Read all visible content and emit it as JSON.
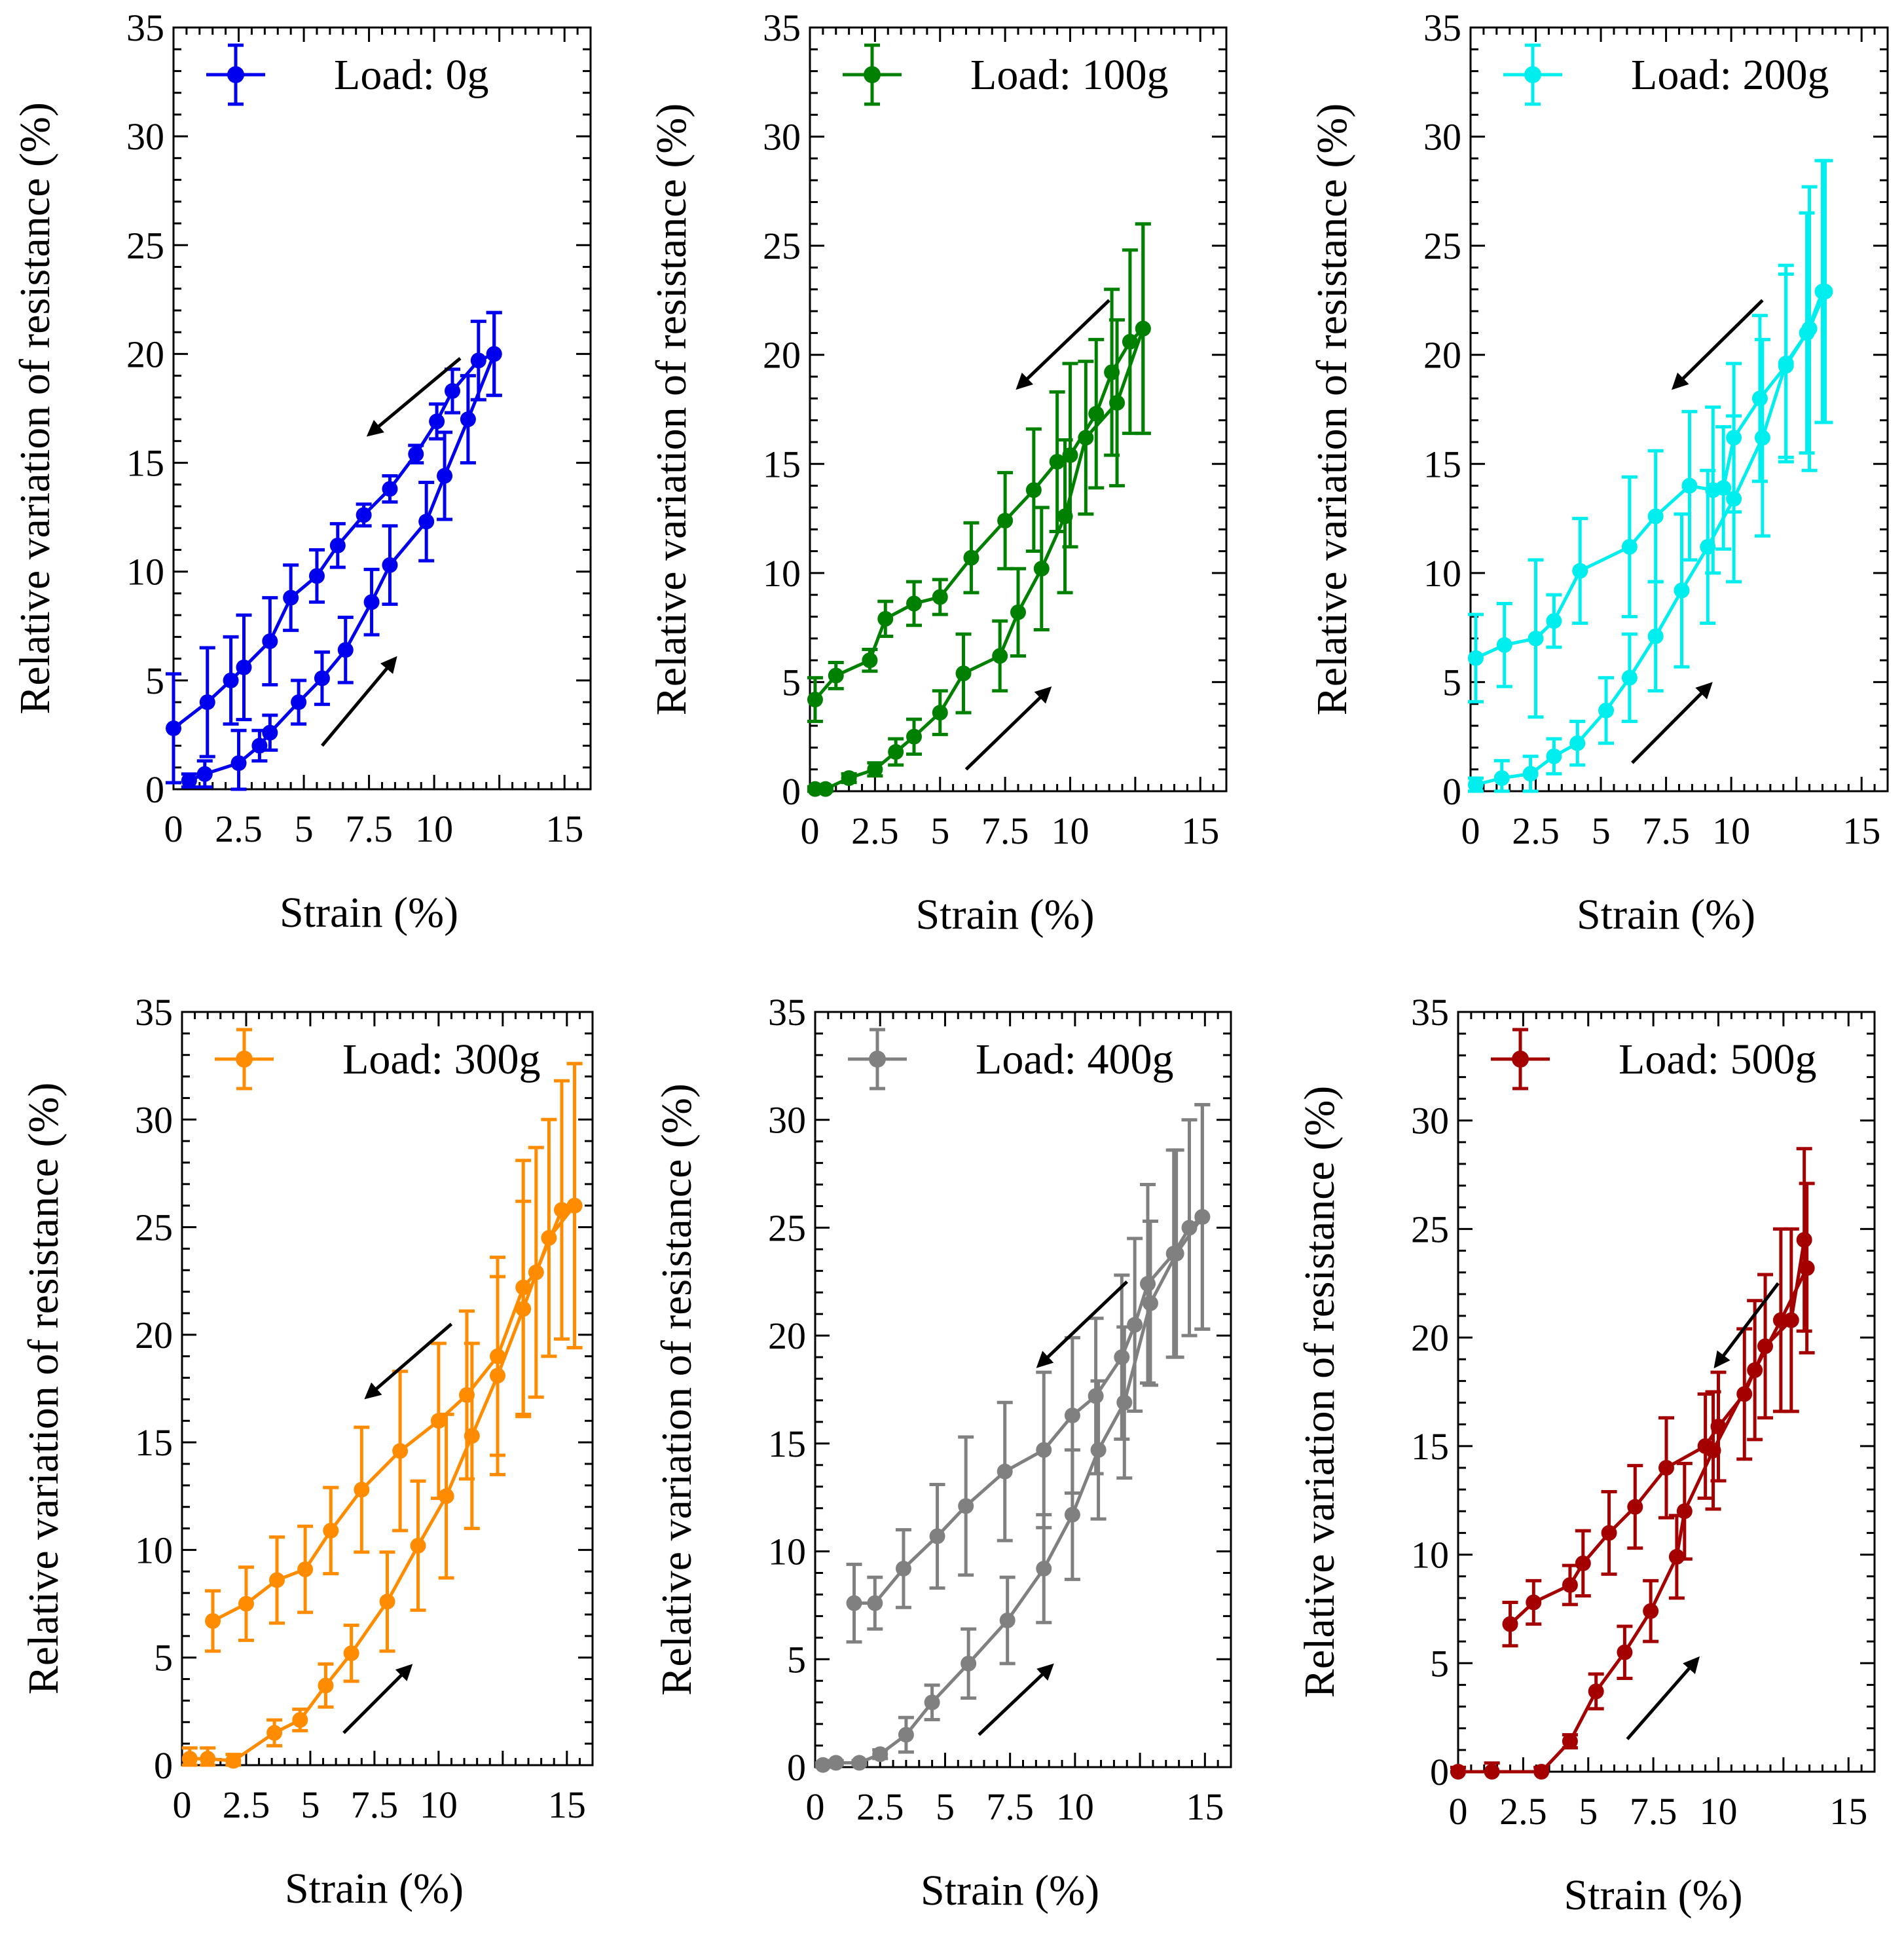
{
  "figure": {
    "x_axis_label": "Strain (%)",
    "y_axis_label": "Relative variation of resistance (%)"
  },
  "chart_data": [
    {
      "type": "line",
      "title": "",
      "legend": "Load: 0g",
      "legend_position": "top",
      "color": "#0000ee",
      "xlabel": "Strain (%)",
      "ylabel": "Relative variation of resistance (%)",
      "xlim": [
        0,
        16
      ],
      "ylim": [
        0,
        35
      ],
      "x_ticks": [
        0,
        2.5,
        5,
        7.5,
        10,
        15
      ],
      "y_ticks": [
        0,
        5,
        10,
        15,
        20,
        25,
        30,
        35
      ],
      "series": [
        {
          "name": "loading",
          "x": [
            0.6,
            1.2,
            2.5,
            3.3,
            3.7,
            4.8,
            5.7,
            6.6,
            7.6,
            8.3,
            9.7,
            10.4,
            11.3,
            12.3
          ],
          "y": [
            0.4,
            0.7,
            1.2,
            2.0,
            2.6,
            4.0,
            5.1,
            6.4,
            8.6,
            10.3,
            12.3,
            14.4,
            17.0,
            20.0
          ],
          "err": [
            0.3,
            0.6,
            1.5,
            0.7,
            0.8,
            1.0,
            1.2,
            1.5,
            1.5,
            1.8,
            1.8,
            2.0,
            2.0,
            1.9
          ]
        },
        {
          "name": "unloading",
          "x": [
            0,
            1.3,
            2.2,
            2.7,
            3.7,
            4.5,
            5.5,
            6.3,
            7.3,
            8.3,
            9.3,
            10.1,
            10.7,
            11.7,
            12.3
          ],
          "y": [
            2.8,
            4.0,
            5.0,
            5.6,
            6.8,
            8.8,
            9.8,
            11.2,
            12.6,
            13.8,
            15.4,
            16.9,
            18.3,
            19.7,
            20.0
          ],
          "err": [
            2.5,
            2.5,
            2.0,
            2.4,
            2.0,
            1.5,
            1.2,
            1.0,
            0.5,
            0.6,
            0.4,
            0.8,
            1.0,
            1.8,
            1.9
          ]
        }
      ]
    },
    {
      "type": "line",
      "title": "",
      "legend": "Load: 100g",
      "legend_position": "top",
      "color": "#008000",
      "xlabel": "Strain (%)",
      "ylabel": "Relative variation of resistance (%)",
      "xlim": [
        0,
        16
      ],
      "ylim": [
        0,
        35
      ],
      "x_ticks": [
        0,
        2.5,
        5,
        7.5,
        10,
        15
      ],
      "y_ticks": [
        0,
        5,
        10,
        15,
        20,
        25,
        30,
        35
      ],
      "series": [
        {
          "name": "loading",
          "x": [
            0.2,
            0.6,
            1.5,
            2.5,
            3.3,
            4.0,
            5.0,
            5.9,
            7.3,
            8.0,
            8.9,
            9.8,
            10.6,
            11.8,
            12.8
          ],
          "y": [
            0.1,
            0.1,
            0.6,
            1.0,
            1.8,
            2.5,
            3.6,
            5.4,
            6.2,
            8.2,
            10.2,
            12.6,
            16.2,
            17.8,
            21.2
          ],
          "err": [
            0.1,
            0.1,
            0.2,
            0.3,
            0.6,
            0.8,
            1.0,
            1.8,
            1.6,
            2.0,
            2.8,
            3.5,
            3.5,
            3.8,
            4.8
          ]
        },
        {
          "name": "unloading",
          "x": [
            0.2,
            1.0,
            2.3,
            2.9,
            4.0,
            5.0,
            6.2,
            7.5,
            8.6,
            9.5,
            10.0,
            11.0,
            11.6,
            12.3,
            12.8
          ],
          "y": [
            4.2,
            5.3,
            6.0,
            7.9,
            8.6,
            8.9,
            10.7,
            12.4,
            13.8,
            15.1,
            15.4,
            17.3,
            19.2,
            20.6,
            21.2
          ],
          "err": [
            1.0,
            0.6,
            0.5,
            0.8,
            1.0,
            0.8,
            1.6,
            2.2,
            2.8,
            3.2,
            4.2,
            3.4,
            3.8,
            4.2,
            4.8
          ]
        }
      ]
    },
    {
      "type": "line",
      "title": "",
      "legend": "Load: 200g",
      "legend_position": "top",
      "color": "#00eeee",
      "xlabel": "Strain (%)",
      "ylabel": "Relative variation of resistance (%)",
      "xlim": [
        0,
        16
      ],
      "ylim": [
        0,
        35
      ],
      "x_ticks": [
        0,
        2.5,
        5,
        7.5,
        10,
        15
      ],
      "y_ticks": [
        0,
        5,
        10,
        15,
        20,
        25,
        30,
        35
      ],
      "series": [
        {
          "name": "loading",
          "x": [
            0.2,
            1.2,
            2.3,
            3.2,
            4.1,
            5.2,
            6.1,
            7.1,
            8.1,
            9.1,
            10.1,
            11.2,
            12.1,
            12.9,
            13.5
          ],
          "y": [
            0.3,
            0.6,
            0.8,
            1.6,
            2.2,
            3.7,
            5.2,
            7.1,
            9.2,
            11.2,
            13.4,
            16.2,
            19.6,
            21.0,
            22.9
          ],
          "err": [
            0.3,
            0.8,
            0.8,
            0.8,
            1.0,
            1.5,
            2.0,
            2.5,
            3.5,
            3.5,
            3.8,
            4.5,
            4.5,
            5.5,
            6.0
          ]
        },
        {
          "name": "unloading",
          "x": [
            0.2,
            1.3,
            2.5,
            3.2,
            4.2,
            6.1,
            7.1,
            8.4,
            9.3,
            9.7,
            10.1,
            11.1,
            12.1,
            13.0,
            13.6
          ],
          "y": [
            6.1,
            6.7,
            7.0,
            7.8,
            10.1,
            11.2,
            12.6,
            14.0,
            13.8,
            13.9,
            16.2,
            18.0,
            19.5,
            21.2,
            22.9
          ],
          "err": [
            2.0,
            1.9,
            3.6,
            1.2,
            2.4,
            3.2,
            3.0,
            3.4,
            3.8,
            2.8,
            3.4,
            3.8,
            4.2,
            6.5,
            6.0
          ]
        }
      ]
    },
    {
      "type": "line",
      "title": "",
      "legend": "Load: 300g",
      "legend_position": "top",
      "color": "#ff8c00",
      "xlabel": "Strain (%)",
      "ylabel": "Relative variation of resistance (%)",
      "xlim": [
        0,
        16
      ],
      "ylim": [
        0,
        35
      ],
      "x_ticks": [
        0,
        2.5,
        5,
        7.5,
        10,
        15
      ],
      "y_ticks": [
        0,
        5,
        10,
        15,
        20,
        25,
        30,
        35
      ],
      "series": [
        {
          "name": "loading",
          "x": [
            0.3,
            1.0,
            2.0,
            3.6,
            4.6,
            5.6,
            6.6,
            8.0,
            9.2,
            10.3,
            11.3,
            12.3,
            13.3,
            14.3,
            15.3
          ],
          "y": [
            0.3,
            0.3,
            0.2,
            1.5,
            2.1,
            3.7,
            5.2,
            7.6,
            10.2,
            12.5,
            15.3,
            18.1,
            21.2,
            24.5,
            26.0
          ],
          "err": [
            0.5,
            0.5,
            0.3,
            0.6,
            0.5,
            1.0,
            1.3,
            2.3,
            3.0,
            3.8,
            4.3,
            4.6,
            5.0,
            5.5,
            6.6
          ]
        },
        {
          "name": "unloading",
          "x": [
            1.2,
            2.5,
            3.7,
            4.8,
            5.8,
            7.0,
            8.5,
            10.0,
            11.1,
            12.3,
            13.3,
            13.8,
            14.8,
            15.3
          ],
          "y": [
            6.7,
            7.5,
            8.6,
            9.1,
            10.9,
            12.8,
            14.6,
            16.0,
            17.2,
            19.0,
            22.2,
            22.9,
            25.8,
            26.0
          ],
          "err": [
            1.4,
            1.7,
            2.0,
            2.0,
            2.0,
            2.9,
            3.7,
            3.6,
            3.9,
            4.6,
            5.9,
            5.8,
            6.0,
            6.6
          ]
        }
      ]
    },
    {
      "type": "line",
      "title": "",
      "legend": "Load: 400g",
      "legend_position": "top",
      "color": "#808080",
      "xlabel": "Strain (%)",
      "ylabel": "Relative variation of resistance (%)",
      "xlim": [
        0,
        16
      ],
      "ylim": [
        0,
        35
      ],
      "x_ticks": [
        0,
        2.5,
        5,
        7.5,
        10,
        15
      ],
      "y_ticks": [
        0,
        5,
        10,
        15,
        20,
        25,
        30,
        35
      ],
      "series": [
        {
          "name": "loading",
          "x": [
            0.3,
            0.8,
            1.7,
            2.5,
            3.5,
            4.5,
            5.9,
            7.4,
            8.8,
            9.9,
            10.9,
            11.9,
            12.9,
            13.9,
            14.9
          ],
          "y": [
            0.1,
            0.2,
            0.2,
            0.6,
            1.5,
            3.0,
            4.8,
            6.8,
            9.2,
            11.7,
            14.7,
            16.9,
            21.5,
            23.8,
            25.5
          ],
          "err": [
            0.1,
            0.1,
            0.1,
            0.2,
            0.8,
            0.8,
            1.6,
            2.0,
            2.5,
            3.0,
            3.2,
            3.5,
            3.8,
            4.8,
            5.2
          ]
        },
        {
          "name": "unloading",
          "x": [
            1.5,
            2.3,
            3.4,
            4.7,
            5.8,
            7.3,
            8.8,
            9.9,
            10.8,
            11.8,
            12.3,
            12.8,
            13.8,
            14.4,
            14.9
          ],
          "y": [
            7.6,
            7.6,
            9.2,
            10.7,
            12.1,
            13.7,
            14.7,
            16.3,
            17.2,
            19.0,
            20.5,
            22.4,
            23.8,
            25.0,
            25.5
          ],
          "err": [
            1.8,
            1.2,
            1.8,
            2.4,
            3.2,
            3.2,
            3.6,
            3.6,
            3.6,
            3.8,
            4.0,
            4.6,
            4.8,
            5.0,
            5.2
          ]
        }
      ]
    },
    {
      "type": "line",
      "title": "",
      "legend": "Load: 500g",
      "legend_position": "top",
      "color": "#a50000",
      "xlabel": "Strain (%)",
      "ylabel": "Relative variation of resistance (%)",
      "xlim": [
        0,
        16
      ],
      "ylim": [
        0,
        35
      ],
      "x_ticks": [
        0,
        2.5,
        5,
        7.5,
        10,
        15
      ],
      "y_ticks": [
        0,
        5,
        10,
        15,
        20,
        25,
        30,
        35
      ],
      "series": [
        {
          "name": "loading",
          "x": [
            0,
            1.3,
            3.2,
            4.3,
            5.3,
            6.4,
            7.4,
            8.4,
            8.7,
            9.8,
            11.4,
            12.4,
            13.4
          ],
          "y": [
            0.0,
            0.0,
            0.0,
            1.4,
            3.7,
            5.5,
            7.4,
            9.9,
            12.0,
            14.8,
            18.5,
            20.8,
            23.2
          ],
          "err": [
            0.2,
            0.4,
            0.2,
            0.3,
            0.8,
            1.2,
            1.4,
            1.9,
            2.2,
            2.7,
            3.2,
            4.2,
            3.9
          ]
        },
        {
          "name": "unloading",
          "x": [
            2.0,
            2.9,
            4.3,
            4.8,
            5.8,
            6.8,
            8.0,
            9.5,
            10.0,
            11.0,
            11.8,
            12.8,
            13.3
          ],
          "y": [
            6.8,
            7.8,
            8.6,
            9.6,
            11.0,
            12.2,
            14.0,
            15.0,
            15.9,
            17.4,
            19.6,
            20.8,
            24.5
          ],
          "err": [
            1.0,
            1.0,
            0.9,
            1.5,
            1.9,
            1.9,
            2.3,
            2.4,
            2.5,
            3.0,
            3.3,
            4.2,
            4.2
          ]
        }
      ]
    }
  ]
}
